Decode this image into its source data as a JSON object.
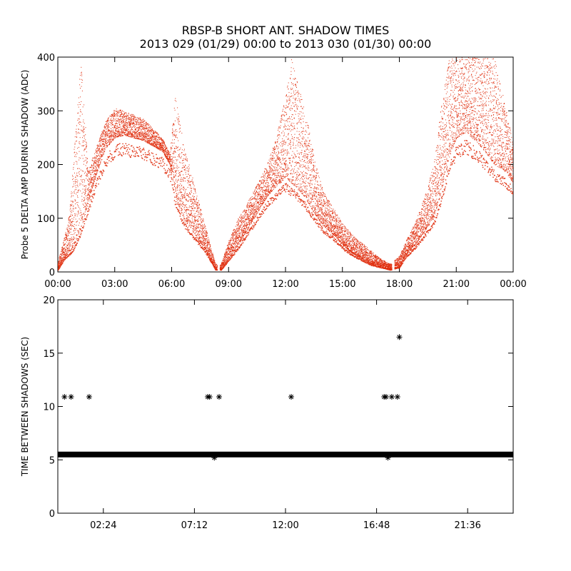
{
  "page": {
    "title_line1": "RBSP-B SHORT ANT. SHADOW TIMES",
    "title_line2": "2013 029 (01/29) 00:00 to 2013 030 (01/30) 00:00"
  },
  "chart_data": [
    {
      "type": "scatter",
      "ylabel": "Probe 5 DELTA AMP DURING SHADOW (ADC)",
      "xlabel": "",
      "x_unit": "hours",
      "xlim": [
        0,
        24
      ],
      "ylim": [
        0,
        400
      ],
      "xticks": [
        {
          "value": 0,
          "label": "00:00"
        },
        {
          "value": 3,
          "label": "03:00"
        },
        {
          "value": 6,
          "label": "06:00"
        },
        {
          "value": 9,
          "label": "09:00"
        },
        {
          "value": 12,
          "label": "12:00"
        },
        {
          "value": 15,
          "label": "15:00"
        },
        {
          "value": 18,
          "label": "18:00"
        },
        {
          "value": 21,
          "label": "21:00"
        },
        {
          "value": 24,
          "label": "00:00"
        }
      ],
      "yticks": [
        0,
        100,
        200,
        300,
        400
      ],
      "color": "#e03010",
      "envelope_lower": [
        [
          0.0,
          5
        ],
        [
          0.3,
          25
        ],
        [
          0.8,
          45
        ],
        [
          1.2,
          80
        ],
        [
          1.6,
          130
        ],
        [
          2.0,
          180
        ],
        [
          2.5,
          230
        ],
        [
          3.0,
          250
        ],
        [
          3.5,
          255
        ],
        [
          4.5,
          245
        ],
        [
          5.5,
          225
        ],
        [
          5.9,
          200
        ],
        [
          6.2,
          140
        ],
        [
          6.6,
          100
        ],
        [
          7.2,
          70
        ],
        [
          7.8,
          40
        ],
        [
          8.3,
          5
        ],
        [
          8.6,
          5
        ],
        [
          9.0,
          25
        ],
        [
          9.5,
          50
        ],
        [
          10.0,
          80
        ],
        [
          10.5,
          110
        ],
        [
          11.0,
          140
        ],
        [
          11.5,
          160
        ],
        [
          12.0,
          175
        ],
        [
          12.5,
          160
        ],
        [
          13.0,
          140
        ],
        [
          13.5,
          110
        ],
        [
          14.0,
          85
        ],
        [
          14.5,
          70
        ],
        [
          15.0,
          50
        ],
        [
          15.5,
          35
        ],
        [
          16.0,
          25
        ],
        [
          16.5,
          15
        ],
        [
          17.0,
          10
        ],
        [
          17.5,
          5
        ],
        [
          18.0,
          10
        ],
        [
          18.3,
          30
        ],
        [
          18.8,
          50
        ],
        [
          19.3,
          75
        ],
        [
          19.8,
          100
        ],
        [
          20.2,
          150
        ],
        [
          20.6,
          210
        ],
        [
          21.0,
          250
        ],
        [
          21.5,
          260
        ],
        [
          22.0,
          245
        ],
        [
          22.5,
          225
        ],
        [
          23.0,
          200
        ],
        [
          23.5,
          190
        ],
        [
          24.0,
          165
        ]
      ],
      "envelope_upper": [
        [
          0.0,
          20
        ],
        [
          0.3,
          60
        ],
        [
          0.6,
          110
        ],
        [
          0.9,
          260
        ],
        [
          1.2,
          400
        ],
        [
          1.6,
          190
        ],
        [
          2.0,
          230
        ],
        [
          2.5,
          280
        ],
        [
          3.0,
          305
        ],
        [
          3.5,
          300
        ],
        [
          4.5,
          285
        ],
        [
          5.5,
          250
        ],
        [
          5.9,
          220
        ],
        [
          6.2,
          340
        ],
        [
          6.6,
          240
        ],
        [
          7.2,
          160
        ],
        [
          7.8,
          80
        ],
        [
          8.3,
          15
        ],
        [
          8.6,
          15
        ],
        [
          9.0,
          60
        ],
        [
          9.5,
          100
        ],
        [
          10.0,
          130
        ],
        [
          10.5,
          165
        ],
        [
          11.0,
          200
        ],
        [
          11.5,
          250
        ],
        [
          12.0,
          330
        ],
        [
          12.3,
          400
        ],
        [
          12.8,
          330
        ],
        [
          13.2,
          270
        ],
        [
          13.6,
          200
        ],
        [
          14.0,
          150
        ],
        [
          14.5,
          120
        ],
        [
          15.0,
          90
        ],
        [
          15.5,
          70
        ],
        [
          16.0,
          55
        ],
        [
          16.5,
          40
        ],
        [
          17.0,
          25
        ],
        [
          17.5,
          15
        ],
        [
          18.0,
          30
        ],
        [
          18.3,
          55
        ],
        [
          18.8,
          90
        ],
        [
          19.3,
          140
        ],
        [
          19.8,
          200
        ],
        [
          20.2,
          310
        ],
        [
          20.6,
          400
        ],
        [
          21.0,
          400
        ],
        [
          22.0,
          400
        ],
        [
          23.0,
          400
        ],
        [
          23.5,
          320
        ],
        [
          24.0,
          240
        ]
      ],
      "zero_crossings": [
        8.4,
        17.6
      ]
    },
    {
      "type": "scatter",
      "ylabel": "TIME BETWEEN SHADOWS (SEC)",
      "xlabel": "",
      "x_unit": "hours",
      "xlim": [
        0,
        24
      ],
      "ylim": [
        0,
        20
      ],
      "xticks": [
        {
          "value": 2.4,
          "label": "02:24"
        },
        {
          "value": 7.2,
          "label": "07:12"
        },
        {
          "value": 12.0,
          "label": "12:00"
        },
        {
          "value": 16.8,
          "label": "16:48"
        },
        {
          "value": 21.6,
          "label": "21:36"
        }
      ],
      "yticks": [
        0,
        5,
        10,
        15,
        20
      ],
      "marker": "asterisk",
      "color": "#000000",
      "baseline": {
        "y": 5.5,
        "x_from": 0.0,
        "x_to": 24.0
      },
      "points": [
        {
          "x": 0.35,
          "y": 10.9
        },
        {
          "x": 0.7,
          "y": 10.9
        },
        {
          "x": 1.65,
          "y": 10.9
        },
        {
          "x": 7.9,
          "y": 10.9
        },
        {
          "x": 8.0,
          "y": 10.9
        },
        {
          "x": 8.5,
          "y": 10.9
        },
        {
          "x": 12.3,
          "y": 10.9
        },
        {
          "x": 17.2,
          "y": 10.9
        },
        {
          "x": 17.3,
          "y": 10.9
        },
        {
          "x": 17.6,
          "y": 10.9
        },
        {
          "x": 17.9,
          "y": 10.9
        },
        {
          "x": 18.0,
          "y": 16.5
        },
        {
          "x": 8.25,
          "y": 5.2
        },
        {
          "x": 17.4,
          "y": 5.2
        }
      ]
    }
  ]
}
